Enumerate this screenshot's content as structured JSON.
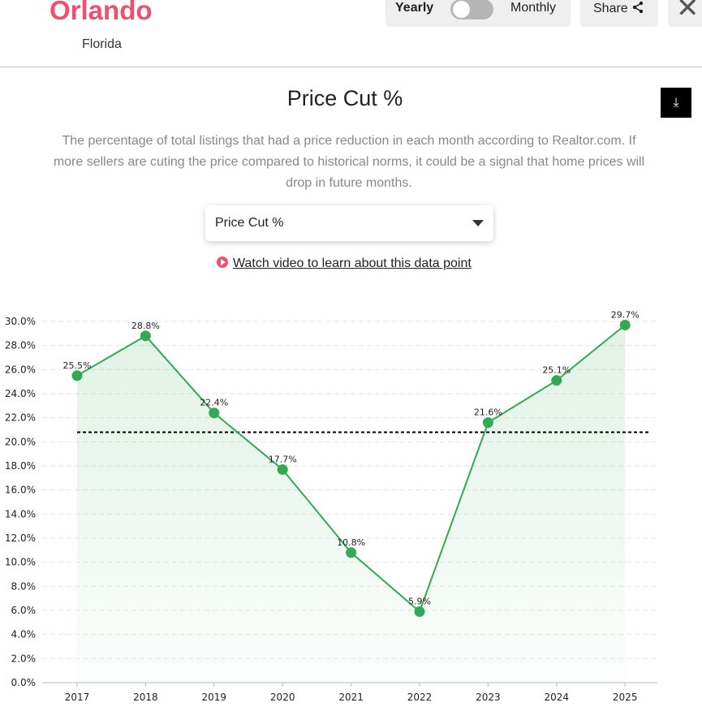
{
  "header": {
    "city": "Orlando",
    "state": "Florida",
    "toggle": {
      "left": "Yearly",
      "right": "Monthly",
      "selected": "Yearly"
    },
    "share_label": "Share",
    "close_icon": "close-icon",
    "share_icon": "share-icon"
  },
  "title": "Price Cut %",
  "description": "The percentage of total listings that had a price reduction in each month according to Realtor.com. If more sellers are cuting the price compared to historical norms, it could be a signal that home prices will drop in future months.",
  "download_icon": "download-icon",
  "select": {
    "value": "Price Cut %"
  },
  "video_link": "Watch video to learn about this data point",
  "colors": {
    "accent": "#f0506e",
    "line": "#34a853",
    "average": "#000000"
  },
  "chart_data": {
    "type": "line",
    "categories": [
      "2017",
      "2018",
      "2019",
      "2020",
      "2021",
      "2022",
      "2023",
      "2024",
      "2025"
    ],
    "values": [
      25.5,
      28.8,
      22.4,
      17.7,
      10.8,
      5.9,
      21.6,
      25.1,
      29.7
    ],
    "data_labels": [
      "25.5%",
      "28.8%",
      "22.4%",
      "17.7%",
      "10.8%",
      "5.9%",
      "21.6%",
      "25.1%",
      "29.7%"
    ],
    "average_line": 20.8,
    "ylim": [
      0,
      30
    ],
    "yticks": [
      "0.0%",
      "2.0%",
      "4.0%",
      "6.0%",
      "8.0%",
      "10.0%",
      "12.0%",
      "14.0%",
      "16.0%",
      "18.0%",
      "20.0%",
      "22.0%",
      "24.0%",
      "26.0%",
      "28.0%",
      "30.0%"
    ],
    "grid": true,
    "area_fill": true
  }
}
